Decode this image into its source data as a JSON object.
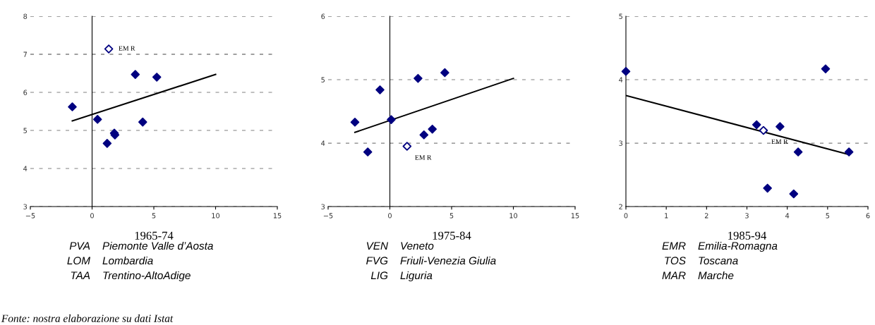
{
  "chart_data": [
    {
      "type": "scatter",
      "title": "1965-74",
      "xlim": [
        -5,
        15
      ],
      "xticks": [
        -5,
        0,
        5,
        10,
        15
      ],
      "ylim": [
        3,
        8
      ],
      "yticks": [
        3,
        4,
        5,
        6,
        7,
        8
      ],
      "grid": "y",
      "series": [
        {
          "marker": "diamond",
          "color": "#000080",
          "x": [
            -1.6,
            0.44,
            1.22,
            1.8,
            1.85,
            3.5,
            5.24,
            4.1
          ],
          "values": [
            5.62,
            5.29,
            4.66,
            4.93,
            4.88,
            6.47,
            6.4,
            5.22
          ]
        },
        {
          "marker": "diamond",
          "color": "#000080",
          "x": [
            1.35
          ],
          "values": [
            7.14
          ]
        },
        {
          "type": "line",
          "marker": "none",
          "color": "#000000",
          "x": [
            -1.6,
            10
          ],
          "values": [
            5.25,
            6.47
          ]
        }
      ],
      "annotations": [
        {
          "text": "EM R",
          "x": 1.35,
          "y": 7.14
        },
        "PVA Piemonte Valle d’Aosta",
        "LOM Lombardia",
        "TAA Trentino-AltoAdige",
        "Fonte: nostra elaborazione su dati Istat"
      ]
    },
    {
      "type": "scatter",
      "title": "1975-84",
      "xlim": [
        -5,
        15
      ],
      "xticks": [
        -5,
        0,
        5,
        10,
        15
      ],
      "ylim": [
        3,
        6
      ],
      "yticks": [
        3,
        4,
        5,
        6
      ],
      "grid": "y",
      "series": [
        {
          "marker": "diamond",
          "color": "#000080",
          "x": [
            -2.83,
            -1.79,
            -0.8,
            0.11,
            2.28,
            2.76,
            3.44,
            4.45
          ],
          "values": [
            4.33,
            3.86,
            4.84,
            4.37,
            5.02,
            4.13,
            4.22,
            5.11
          ]
        },
        {
          "marker": "diamond",
          "color": "#000080",
          "x": [
            1.39
          ],
          "values": [
            3.95
          ]
        },
        {
          "type": "line",
          "marker": "none",
          "color": "#000000",
          "x": [
            -2.83,
            10
          ],
          "values": [
            4.17,
            5.02
          ]
        }
      ],
      "annotations": [
        {
          "text": "EM R",
          "x": 1.39,
          "y": 3.95
        },
        "VEN Veneto",
        "FVG Friuli-Venezia Giulia",
        "LIG Liguria"
      ]
    },
    {
      "type": "scatter",
      "title": "1985-94",
      "xlim": [
        0,
        6
      ],
      "xticks": [
        0,
        1,
        2,
        3,
        4,
        5,
        6
      ],
      "ylim": [
        2,
        5
      ],
      "yticks": [
        2,
        3,
        4,
        5
      ],
      "grid": "y",
      "series": [
        {
          "marker": "diamond",
          "color": "#000080",
          "x": [
            0,
            3.24,
            3.82,
            3.51,
            4.16,
            4.27,
            4.95,
            5.53
          ],
          "values": [
            4.13,
            3.29,
            3.26,
            2.29,
            2.2,
            2.86,
            4.17,
            2.86
          ]
        },
        {
          "marker": "diamond",
          "color": "#000080",
          "x": [
            3.41
          ],
          "values": [
            3.2
          ]
        },
        {
          "type": "line",
          "marker": "none",
          "color": "#000000",
          "x": [
            0,
            5.53
          ],
          "values": [
            3.75,
            2.82
          ]
        }
      ],
      "annotations": [
        {
          "text": "EM R",
          "x": 3.41,
          "y": 3.2
        },
        "EMR Emilia-Romagna",
        "TOS Toscana",
        "MAR Marche"
      ]
    }
  ]
}
